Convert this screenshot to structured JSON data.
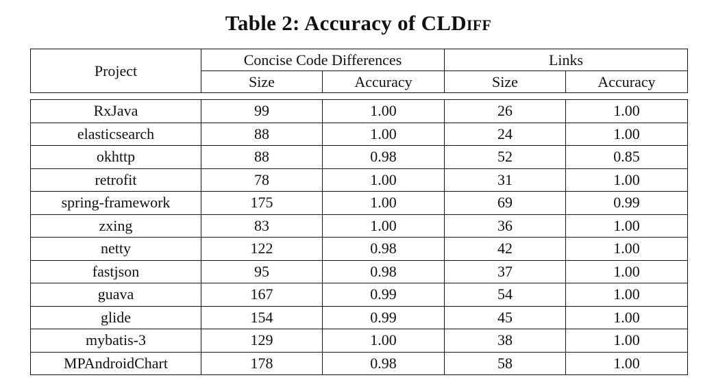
{
  "caption": {
    "prefix": "Table 2: Accuracy of ",
    "tool": "CLDiff"
  },
  "header": {
    "project": "Project",
    "group1": "Concise Code Differences",
    "group2": "Links",
    "size1": "Size",
    "acc1": "Accuracy",
    "size2": "Size",
    "acc2": "Accuracy"
  },
  "rows": [
    {
      "project": "RxJava",
      "ccd_size": "99",
      "ccd_acc": "1.00",
      "links_size": "26",
      "links_acc": "1.00"
    },
    {
      "project": "elasticsearch",
      "ccd_size": "88",
      "ccd_acc": "1.00",
      "links_size": "24",
      "links_acc": "1.00"
    },
    {
      "project": "okhttp",
      "ccd_size": "88",
      "ccd_acc": "0.98",
      "links_size": "52",
      "links_acc": "0.85"
    },
    {
      "project": "retrofit",
      "ccd_size": "78",
      "ccd_acc": "1.00",
      "links_size": "31",
      "links_acc": "1.00"
    },
    {
      "project": "spring-framework",
      "ccd_size": "175",
      "ccd_acc": "1.00",
      "links_size": "69",
      "links_acc": "0.99"
    },
    {
      "project": "zxing",
      "ccd_size": "83",
      "ccd_acc": "1.00",
      "links_size": "36",
      "links_acc": "1.00"
    },
    {
      "project": "netty",
      "ccd_size": "122",
      "ccd_acc": "0.98",
      "links_size": "42",
      "links_acc": "1.00"
    },
    {
      "project": "fastjson",
      "ccd_size": "95",
      "ccd_acc": "0.98",
      "links_size": "37",
      "links_acc": "1.00"
    },
    {
      "project": "guava",
      "ccd_size": "167",
      "ccd_acc": "0.99",
      "links_size": "54",
      "links_acc": "1.00"
    },
    {
      "project": "glide",
      "ccd_size": "154",
      "ccd_acc": "0.99",
      "links_size": "45",
      "links_acc": "1.00"
    },
    {
      "project": "mybatis-3",
      "ccd_size": "129",
      "ccd_acc": "1.00",
      "links_size": "38",
      "links_acc": "1.00"
    },
    {
      "project": "MPAndroidChart",
      "ccd_size": "178",
      "ccd_acc": "0.98",
      "links_size": "58",
      "links_acc": "1.00"
    }
  ]
}
